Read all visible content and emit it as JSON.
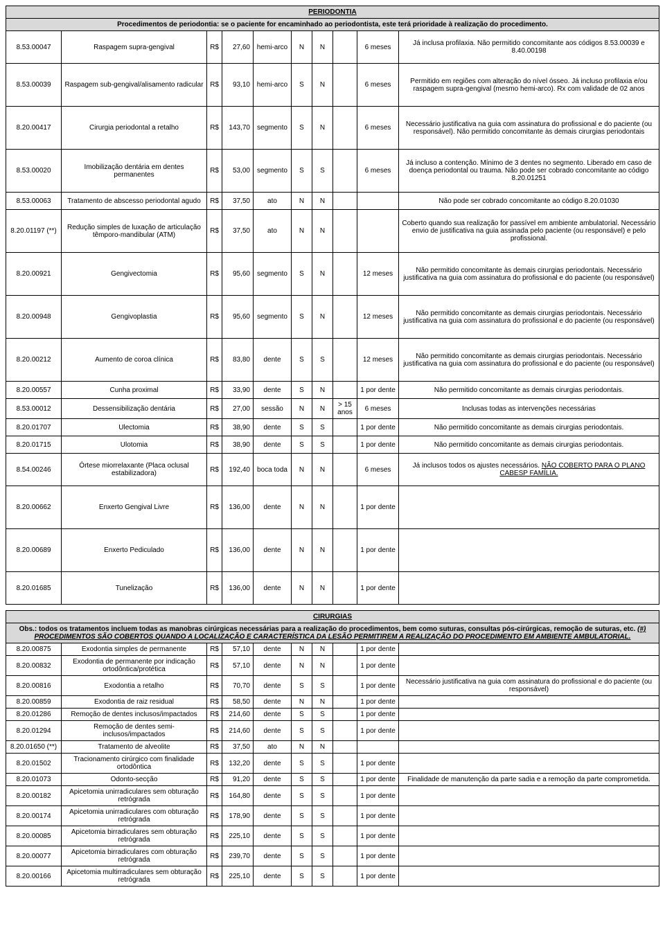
{
  "periodontia": {
    "title": "PERIODONTIA",
    "subtitle": "Procedimentos de periodontia: se o paciente for encaminhado ao periodontista, este terá prioridade à realização do procedimento.",
    "rows": [
      {
        "code": "8.53.00047",
        "desc": "Raspagem supra-gengival",
        "cur": "R$",
        "price": "27,60",
        "unit": "hemi-arco",
        "c1": "N",
        "c2": "N",
        "age": "",
        "freq": "6 meses",
        "obs": "Já inclusa profilaxia. Não permitido concomitante aos códigos 8.53.00039 e 8.40.00198"
      },
      {
        "code": "8.53.00039",
        "desc": "Raspagem sub-gengival/alisamento radicular",
        "cur": "R$",
        "price": "93,10",
        "unit": "hemi-arco",
        "c1": "S",
        "c2": "N",
        "age": "",
        "freq": "6 meses",
        "obs": "Permitido em regiões com alteração do nível ósseo. Já incluso profilaxia e/ou raspagem supra-gengival (mesmo hemi-arco). Rx com validade de 02 anos"
      },
      {
        "code": "8.20.00417",
        "desc": "Cirurgia periodontal a retalho",
        "cur": "R$",
        "price": "143,70",
        "unit": "segmento",
        "c1": "S",
        "c2": "N",
        "age": "",
        "freq": "6 meses",
        "obs": "Necessário justificativa na guia com assinatura do profissional e do paciente (ou responsável). Não permitido concomitante às demais cirurgias periodontais"
      },
      {
        "code": "8.53.00020",
        "desc": "Imobilização dentária em dentes permanentes",
        "cur": "R$",
        "price": "53,00",
        "unit": "segmento",
        "c1": "S",
        "c2": "S",
        "age": "",
        "freq": "6 meses",
        "obs": "Já incluso a contenção. Mínimo de 3 dentes no segmento. Liberado em caso de doença periodontal ou trauma. Não pode ser cobrado concomitante ao código 8.20.01251"
      },
      {
        "code": "8.53.00063",
        "desc": "Tratamento de abscesso periodontal agudo",
        "cur": "R$",
        "price": "37,50",
        "unit": "ato",
        "c1": "N",
        "c2": "N",
        "age": "",
        "freq": "",
        "obs": "Não pode ser cobrado concomitante ao código 8.20.01030"
      },
      {
        "code": "8.20.01197 (**)",
        "desc": "Redução simples de luxação de articulação têmporo-mandibular (ATM)",
        "cur": "R$",
        "price": "37,50",
        "unit": "ato",
        "c1": "N",
        "c2": "N",
        "age": "",
        "freq": "",
        "obs": "Coberto quando sua realização for passível em ambiente ambulatorial. Necessário envio de justificativa na guia assinada pelo paciente (ou responsável) e pelo profissional."
      },
      {
        "code": "8.20.00921",
        "desc": "Gengivectomia",
        "cur": "R$",
        "price": "95,60",
        "unit": "segmento",
        "c1": "S",
        "c2": "N",
        "age": "",
        "freq": "12 meses",
        "obs": "Não permitido concomitante às demais cirurgias periodontais. Necessário justificativa na guia com assinatura do profissional e do paciente (ou responsável)"
      },
      {
        "code": "8.20.00948",
        "desc": "Gengivoplastia",
        "cur": "R$",
        "price": "95,60",
        "unit": "segmento",
        "c1": "S",
        "c2": "N",
        "age": "",
        "freq": "12 meses",
        "obs": "Não permitido concomitante as demais cirurgias periodontais. Necessário justificativa na guia com assinatura do profissional e do paciente (ou responsável)"
      },
      {
        "code": "8.20.00212",
        "desc": "Aumento de coroa clínica",
        "cur": "R$",
        "price": "83,80",
        "unit": "dente",
        "c1": "S",
        "c2": "S",
        "age": "",
        "freq": "12 meses",
        "obs": "Não permitido concomitante as demais cirurgias periodontais. Necessário justificativa na guia com assinatura do profissional e do paciente (ou responsável)"
      },
      {
        "code": "8.20.00557",
        "desc": "Cunha proximal",
        "cur": "R$",
        "price": "33,90",
        "unit": "dente",
        "c1": "S",
        "c2": "N",
        "age": "",
        "freq": "1 por dente",
        "obs": "Não permitido concomitante as demais cirurgias periodontais."
      },
      {
        "code": "8.53.00012",
        "desc": "Dessensibilização dentária",
        "cur": "R$",
        "price": "27,00",
        "unit": "sessão",
        "c1": "N",
        "c2": "N",
        "age": "> 15 anos",
        "freq": "6 meses",
        "obs": "Inclusas todas as intervenções necessárias"
      },
      {
        "code": "8.20.01707",
        "desc": "Ulectomia",
        "cur": "R$",
        "price": "38,90",
        "unit": "dente",
        "c1": "S",
        "c2": "S",
        "age": "",
        "freq": "1 por dente",
        "obs": "Não permitido concomitante as demais cirurgias periodontais."
      },
      {
        "code": "8.20.01715",
        "desc": "Ulotomia",
        "cur": "R$",
        "price": "38,90",
        "unit": "dente",
        "c1": "S",
        "c2": "S",
        "age": "",
        "freq": "1 por dente",
        "obs": "Não permitido concomitante as demais cirurgias periodontais."
      },
      {
        "code": "8.54.00246",
        "desc": "Órtese miorrelaxante (Placa oclusal estabilizadora)",
        "cur": "R$",
        "price": "192,40",
        "unit": "boca toda",
        "c1": "N",
        "c2": "N",
        "age": "",
        "freq": "6 meses",
        "obs": "Já inclusos todos os ajustes necessários. ",
        "obs_extra": "NÃO COBERTO PARA O PLANO CABESP FAMÍLIA."
      },
      {
        "code": "8.20.00662",
        "desc": "Enxerto Gengival Livre",
        "cur": "R$",
        "price": "136,00",
        "unit": "dente",
        "c1": "N",
        "c2": "N",
        "age": "",
        "freq": "1 por dente",
        "obs": ""
      },
      {
        "code": "8.20.00689",
        "desc": "Enxerto Pediculado",
        "cur": "R$",
        "price": "136,00",
        "unit": "dente",
        "c1": "N",
        "c2": "N",
        "age": "",
        "freq": "1 por dente",
        "obs": ""
      },
      {
        "code": "8.20.01685",
        "desc": "Tunelização",
        "cur": "R$",
        "price": "136,00",
        "unit": "dente",
        "c1": "N",
        "c2": "N",
        "age": "",
        "freq": "1 por dente",
        "obs": ""
      }
    ],
    "row_heights": [
      "med",
      "tall",
      "tall",
      "tall",
      "short",
      "tall",
      "tall",
      "tall",
      "tall",
      "short",
      "short",
      "short",
      "short",
      "med",
      "tall",
      "tall",
      "med"
    ]
  },
  "cirurgias": {
    "title": "CIRURGIAS",
    "subtitle_prefix": "Obs.: todos os tratamentos incluem todas as manobras cirúrgicas necessárias para a realização do procedimentos, bem como suturas, consultas pós-cirúrgicas, remoção de suturas, etc. ",
    "subtitle_italic": "(#) PROCEDIMENTOS SÃO COBERTOS QUANDO A LOCALIZAÇÃO E CARACTERÍSTICA DA LESÃO PERMITIREM A REALIZAÇÃO DO PROCEDIMENTO EM AMBIENTE AMBULATORIAL.",
    "rows": [
      {
        "code": "8.20.00875",
        "desc": "Exodontia simples de permanente",
        "cur": "R$",
        "price": "57,10",
        "unit": "dente",
        "c1": "N",
        "c2": "N",
        "age": "",
        "freq": "1 por dente",
        "obs": ""
      },
      {
        "code": "8.20.00832",
        "desc": "Exodontia de permanente por indicação ortodôntica/protética",
        "cur": "R$",
        "price": "57,10",
        "unit": "dente",
        "c1": "N",
        "c2": "N",
        "age": "",
        "freq": "1 por dente",
        "obs": ""
      },
      {
        "code": "8.20.00816",
        "desc": "Exodontia a retalho",
        "cur": "R$",
        "price": "70,70",
        "unit": "dente",
        "c1": "S",
        "c2": "S",
        "age": "",
        "freq": "1 por dente",
        "obs": "Necessário justificativa na guia com assinatura do profissional e do paciente (ou responsável)"
      },
      {
        "code": "8.20.00859",
        "desc": "Exodontia de raiz residual",
        "cur": "R$",
        "price": "58,50",
        "unit": "dente",
        "c1": "N",
        "c2": "N",
        "age": "",
        "freq": "1 por dente",
        "obs": ""
      },
      {
        "code": "8.20.01286",
        "desc": "Remoção de dentes inclusos/impactados",
        "cur": "R$",
        "price": "214,60",
        "unit": "dente",
        "c1": "S",
        "c2": "S",
        "age": "",
        "freq": "1 por dente",
        "obs": ""
      },
      {
        "code": "8.20.01294",
        "desc": "Remoção de dentes semi-inclusos/impactados",
        "cur": "R$",
        "price": "214,60",
        "unit": "dente",
        "c1": "S",
        "c2": "S",
        "age": "",
        "freq": "1 por dente",
        "obs": ""
      },
      {
        "code": "8.20.01650 (**)",
        "desc": "Tratamento de alveolite",
        "cur": "R$",
        "price": "37,50",
        "unit": "ato",
        "c1": "N",
        "c2": "N",
        "age": "",
        "freq": "",
        "obs": ""
      },
      {
        "code": "8.20.01502",
        "desc": "Tracionamento cirúrgico com finalidade ortodôntica",
        "cur": "R$",
        "price": "132,20",
        "unit": "dente",
        "c1": "S",
        "c2": "S",
        "age": "",
        "freq": "1 por dente",
        "obs": ""
      },
      {
        "code": "8.20.01073",
        "desc": "Odonto-secção",
        "cur": "R$",
        "price": "91,20",
        "unit": "dente",
        "c1": "S",
        "c2": "S",
        "age": "",
        "freq": "1 por dente",
        "obs": "Finalidade de manutenção da parte sadia e a remoção da parte comprometida."
      },
      {
        "code": "8.20.00182",
        "desc": "Apicetomia unirradiculares sem obturação retrógrada",
        "cur": "R$",
        "price": "164,80",
        "unit": "dente",
        "c1": "S",
        "c2": "S",
        "age": "",
        "freq": "1 por dente",
        "obs": ""
      },
      {
        "code": "8.20.00174",
        "desc": "Apicetomia unirradiculares com obturação retrógrada",
        "cur": "R$",
        "price": "178,90",
        "unit": "dente",
        "c1": "S",
        "c2": "S",
        "age": "",
        "freq": "1 por dente",
        "obs": ""
      },
      {
        "code": "8.20.00085",
        "desc": "Apicetomia birradiculares sem obturação retrógrada",
        "cur": "R$",
        "price": "225,10",
        "unit": "dente",
        "c1": "S",
        "c2": "S",
        "age": "",
        "freq": "1 por dente",
        "obs": ""
      },
      {
        "code": "8.20.00077",
        "desc": "Apicetomia birradiculares com obturação retrógrada",
        "cur": "R$",
        "price": "239,70",
        "unit": "dente",
        "c1": "S",
        "c2": "S",
        "age": "",
        "freq": "1 por dente",
        "obs": ""
      },
      {
        "code": "8.20.00166",
        "desc": "Apicetomia multirradiculares sem obturação retrógrada",
        "cur": "R$",
        "price": "225,10",
        "unit": "dente",
        "c1": "S",
        "c2": "S",
        "age": "",
        "freq": "1 por dente",
        "obs": ""
      }
    ]
  }
}
